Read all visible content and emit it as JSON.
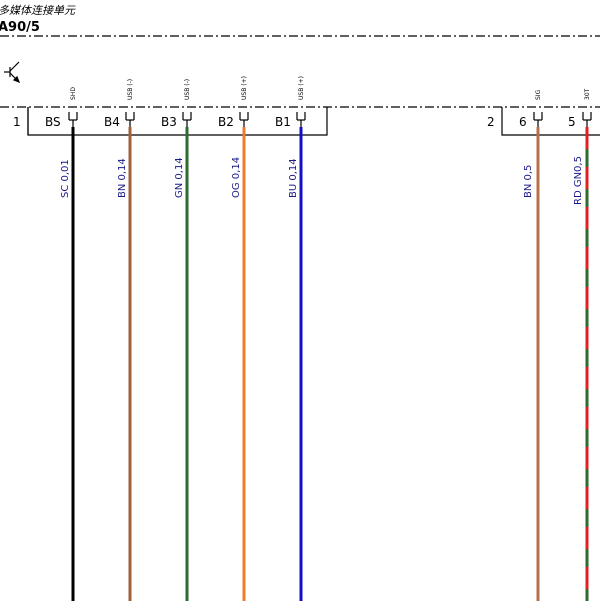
{
  "component": {
    "name": "多媒体连接单元",
    "id": "A90/5"
  },
  "connectors": [
    {
      "number": "1",
      "pins": [
        {
          "label": "BS",
          "signal": "SHD",
          "wire": "SC 0,01",
          "color": "#000000"
        },
        {
          "label": "B4",
          "signal": "USB (-)",
          "wire": "BN 0,14",
          "color": "#a0623a"
        },
        {
          "label": "B3",
          "signal": "USB (-)",
          "wire": "GN 0,14",
          "color": "#2e6b2e"
        },
        {
          "label": "B2",
          "signal": "USB (+)",
          "wire": "OG 0,14",
          "color": "#f07830"
        },
        {
          "label": "B1",
          "signal": "USB (+)",
          "wire": "BU 0,14",
          "color": "#1010c8"
        }
      ]
    },
    {
      "number": "2",
      "pins": [
        {
          "label": "6",
          "signal": "SIG",
          "wire": "BN 0,5",
          "color": "#b5704a"
        },
        {
          "label": "5",
          "signal": "30T",
          "wire": "RD GN0,5",
          "color": "#2e6b2e",
          "stripe": "#e02020"
        }
      ]
    }
  ]
}
